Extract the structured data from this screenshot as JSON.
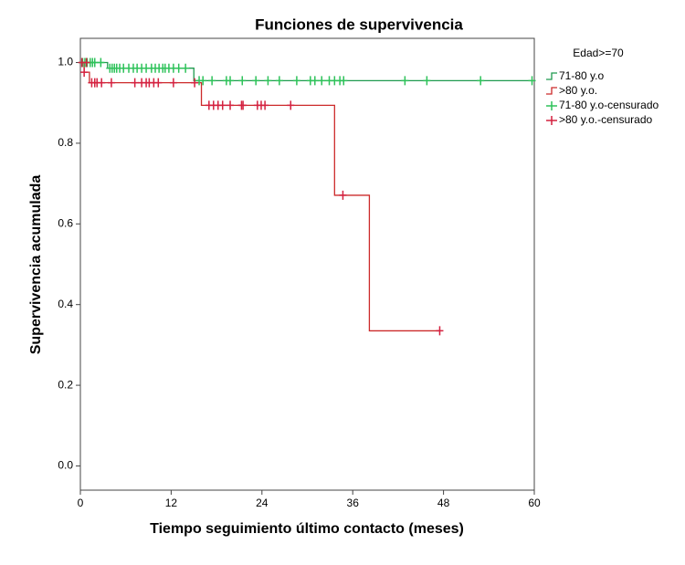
{
  "chart_data": {
    "type": "line",
    "step": true,
    "title": "Funciones de supervivencia",
    "xlabel": "Tiempo seguimiento último contacto (meses)",
    "ylabel": "Supervivencia acumulada",
    "legend_title": "Edad>=70",
    "legend": "right",
    "xlim": [
      0,
      60
    ],
    "xticks": [
      0,
      12,
      24,
      36,
      48,
      60
    ],
    "ylim": [
      -0.06,
      1.06
    ],
    "yticks": [
      {
        "value": 0,
        "label": "0.0"
      },
      0.2,
      0.4,
      0.6,
      0.8,
      {
        "value": 1,
        "label": "1.0"
      }
    ],
    "series": [
      {
        "name": "71-80 y.o",
        "color": "#1f9a4f",
        "x": [
          0,
          3.6,
          15.0,
          59.5
        ],
        "values": [
          1.0,
          0.986,
          0.955,
          0.955
        ]
      },
      {
        "name": ">80 y.o.",
        "color": "#cc2a2a",
        "x": [
          0,
          0.5,
          1.2,
          16.0,
          33.6,
          38.2,
          47.5
        ],
        "values": [
          1.0,
          0.976,
          0.95,
          0.894,
          0.671,
          0.335,
          0.335
        ]
      },
      {
        "name": "71-80 y.o-censurado",
        "color": "#2ec25a",
        "marker": "+",
        "x": [
          0.3,
          0.6,
          0.9,
          1.3,
          1.6,
          1.9,
          2.7,
          3.9,
          4.2,
          4.5,
          4.8,
          5.2,
          5.7,
          6.4,
          7.0,
          7.5,
          8.1,
          8.7,
          9.4,
          9.9,
          10.4,
          10.9,
          11.2,
          11.7,
          12.3,
          13.0,
          13.9,
          15.7,
          16.2,
          17.4,
          19.3,
          19.8,
          21.4,
          23.2,
          24.8,
          26.3,
          28.6,
          30.4,
          31.0,
          31.9,
          32.9,
          33.6,
          34.3,
          34.8,
          42.9,
          45.8,
          52.9,
          59.7
        ],
        "values": [
          1.0,
          1.0,
          1.0,
          1.0,
          1.0,
          1.0,
          1.0,
          0.986,
          0.986,
          0.986,
          0.986,
          0.986,
          0.986,
          0.986,
          0.986,
          0.986,
          0.986,
          0.986,
          0.986,
          0.986,
          0.986,
          0.986,
          0.986,
          0.986,
          0.986,
          0.986,
          0.986,
          0.955,
          0.955,
          0.955,
          0.955,
          0.955,
          0.955,
          0.955,
          0.955,
          0.955,
          0.955,
          0.955,
          0.955,
          0.955,
          0.955,
          0.955,
          0.955,
          0.955,
          0.955,
          0.955,
          0.955,
          0.955
        ]
      },
      {
        "name": ">80 y.o.-censurado",
        "color": "#d4213f",
        "marker": "+",
        "x": [
          0.2,
          0.8,
          0.5,
          1.5,
          1.9,
          2.2,
          2.8,
          4.1,
          7.2,
          8.1,
          8.7,
          9.1,
          9.7,
          10.3,
          12.3,
          15.1,
          17.0,
          17.6,
          18.2,
          18.8,
          19.8,
          21.3,
          21.5,
          23.4,
          23.9,
          24.4,
          27.8,
          34.7,
          47.5
        ],
        "values": [
          1.0,
          1.0,
          0.976,
          0.95,
          0.95,
          0.95,
          0.95,
          0.95,
          0.95,
          0.95,
          0.95,
          0.95,
          0.95,
          0.95,
          0.95,
          0.95,
          0.894,
          0.894,
          0.894,
          0.894,
          0.894,
          0.894,
          0.894,
          0.894,
          0.894,
          0.894,
          0.894,
          0.671,
          0.335
        ]
      }
    ]
  }
}
